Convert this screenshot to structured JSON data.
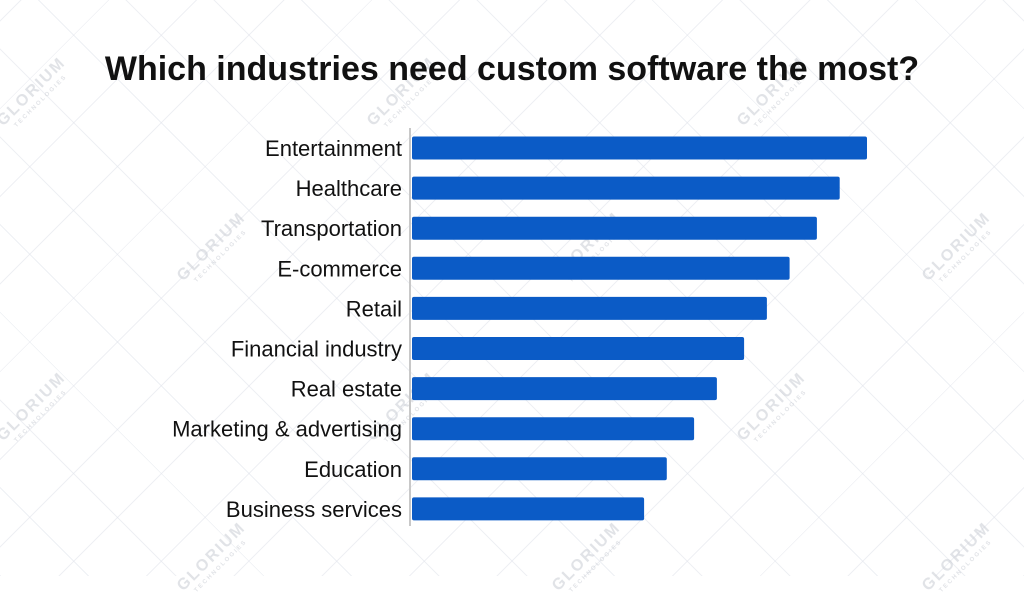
{
  "title": "Which industries need custom software the most?",
  "watermark": {
    "name": "GLORIUM",
    "subtitle": "TECHNOLOGIES"
  },
  "chart_data": {
    "type": "bar",
    "orientation": "horizontal",
    "title": "Which industries need custom software the most?",
    "categories": [
      "Entertainment",
      "Healthcare",
      "Transportation",
      "E-commerce",
      "Retail",
      "Financial industry",
      "Real estate",
      "Marketing & advertising",
      "Education",
      "Business services"
    ],
    "values": [
      100,
      94,
      89,
      83,
      78,
      73,
      67,
      62,
      56,
      51
    ],
    "xlim": [
      0,
      100
    ],
    "bar_color": "#0b5bc6",
    "axis_color": "#c8c8c8",
    "grid": false,
    "legend": "none"
  }
}
